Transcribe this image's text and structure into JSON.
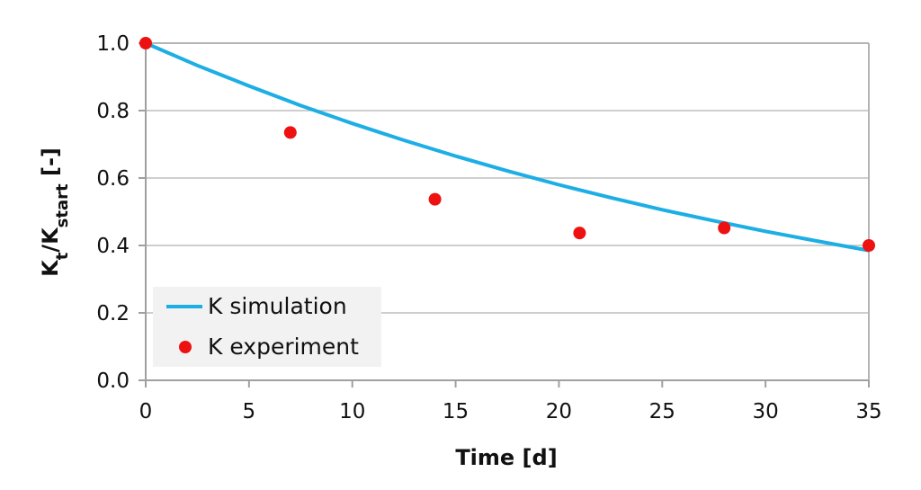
{
  "chart_data": {
    "type": "line+scatter",
    "title": "",
    "xlabel": "Time [d]",
    "ylabel": {
      "base1": "K",
      "sub1": "t",
      "separator": "/",
      "base2": "K",
      "sub2": "start",
      "suffix": " [-]"
    },
    "xlim": [
      0,
      35
    ],
    "ylim": [
      0,
      1.0
    ],
    "x_ticks": [
      0,
      5,
      10,
      15,
      20,
      25,
      30,
      35
    ],
    "x_tick_labels": [
      "0",
      "5",
      "10",
      "15",
      "20",
      "25",
      "30",
      "35"
    ],
    "y_ticks": [
      0,
      0.2,
      0.4,
      0.6,
      0.8,
      1.0
    ],
    "y_tick_labels": [
      "0.0",
      "0.2",
      "0.4",
      "0.6",
      "0.8",
      "1.0"
    ],
    "grid": "horizontal",
    "legend_position": "bottom-left",
    "series": [
      {
        "name": "K simulation",
        "kind": "line",
        "color": "#1CAEE4",
        "x": [
          0,
          2.5,
          5,
          7.5,
          10,
          12.5,
          15,
          17.5,
          20,
          22.5,
          25,
          27.5,
          30,
          32.5,
          35
        ],
        "y": [
          1.0,
          0.934,
          0.873,
          0.815,
          0.762,
          0.712,
          0.665,
          0.621,
          0.58,
          0.542,
          0.506,
          0.473,
          0.442,
          0.413,
          0.385
        ]
      },
      {
        "name": "K experiment",
        "kind": "scatter",
        "color": "#EE1111",
        "x": [
          0,
          7,
          14,
          21,
          28,
          35
        ],
        "y": [
          1.0,
          0.735,
          0.537,
          0.437,
          0.452,
          0.4
        ]
      }
    ]
  }
}
